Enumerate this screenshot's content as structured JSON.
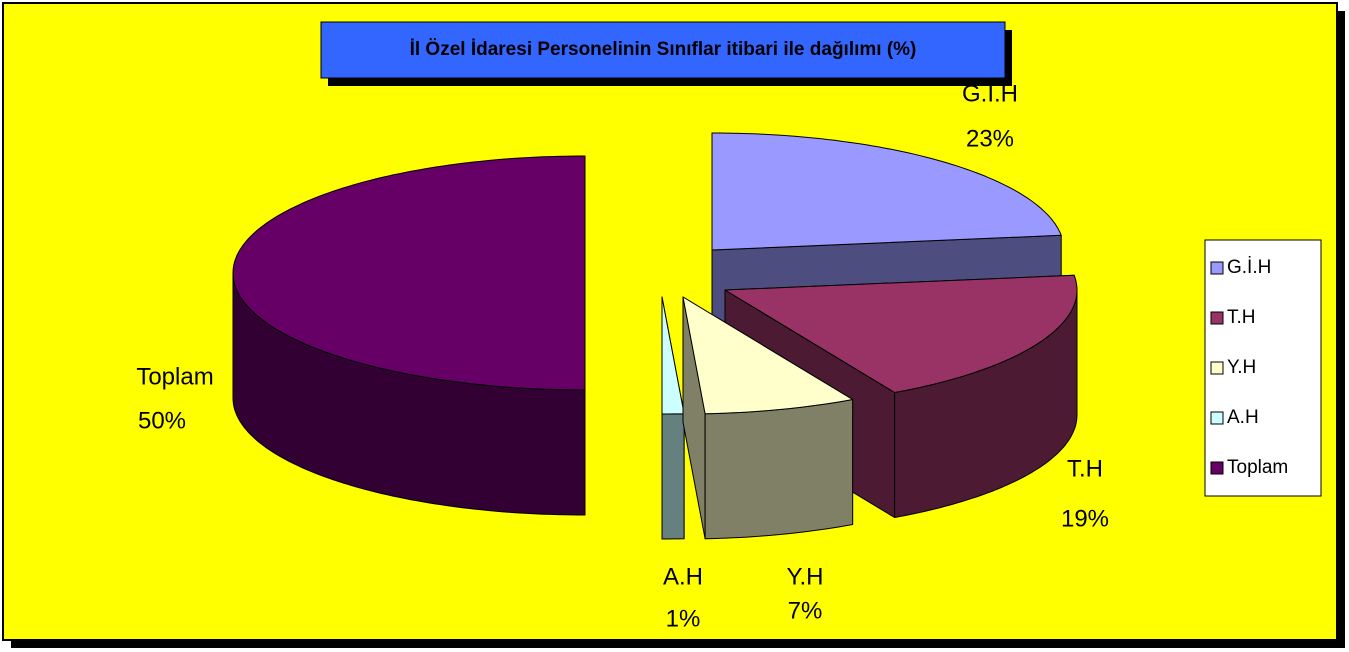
{
  "chart_data": {
    "type": "pie3d",
    "title": "İl Özel İdaresi Personelinin Sınıflar itibari ile dağılımı (%)",
    "categories": [
      "G.İ.H",
      "T.H",
      "Y.H",
      "A.H",
      "Toplam"
    ],
    "values": [
      23,
      19,
      7,
      1,
      50
    ],
    "value_labels": [
      "23%",
      "19%",
      "7%",
      "1%",
      "50%"
    ],
    "colors": [
      "#9999ff",
      "#993366",
      "#ffffcc",
      "#ccffff",
      "#660066"
    ],
    "legend": "right"
  }
}
